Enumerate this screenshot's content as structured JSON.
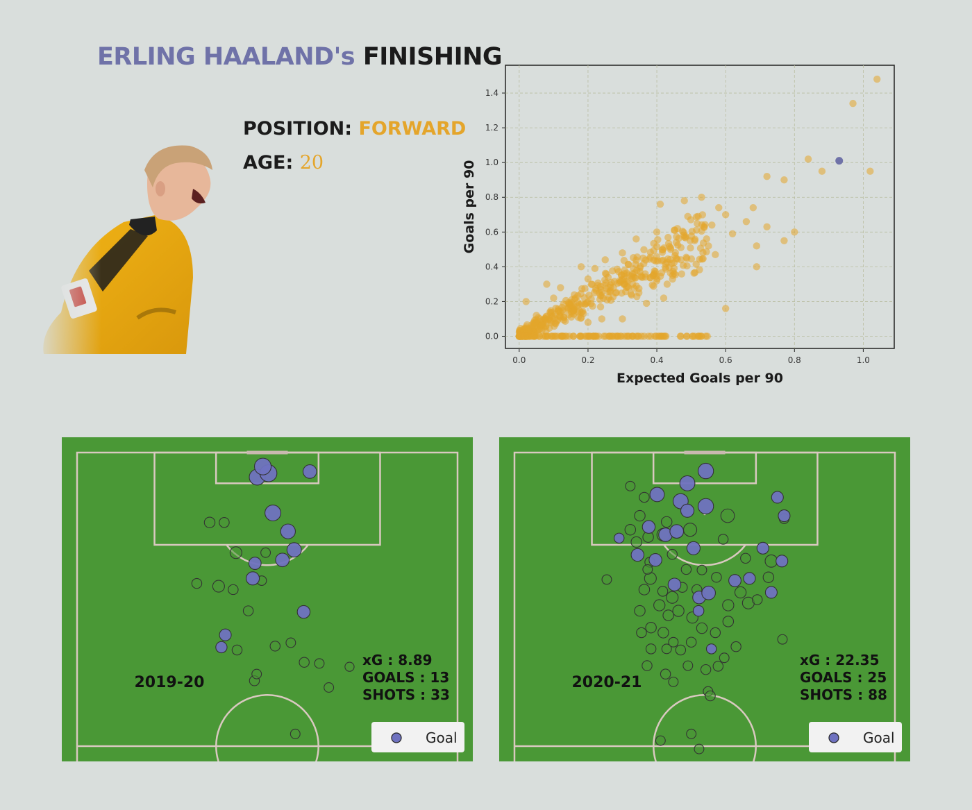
{
  "title": {
    "name": "ERLING HAALAND's",
    "rest": "FINISHING"
  },
  "player": {
    "position_label": "POSITION:",
    "position_value": "FORWARD",
    "age_label": "AGE:",
    "age_value": "20"
  },
  "colors": {
    "accent_gold": "#e4a52b",
    "accent_purple": "#6f72a8",
    "pitch_green": "#4a9836",
    "background": "#d9dedc"
  },
  "chart_data": [
    {
      "type": "scatter",
      "xlabel": "Expected Goals per 90",
      "ylabel": "Goals per 90",
      "xlim": [
        -0.04,
        1.09
      ],
      "ylim": [
        -0.07,
        1.56
      ],
      "xticks": [
        "0.0",
        "0.2",
        "0.4",
        "0.6",
        "0.8",
        "1.0"
      ],
      "yticks": [
        "0.0",
        "0.2",
        "0.4",
        "0.6",
        "0.8",
        "1.0",
        "1.2",
        "1.4"
      ],
      "grid": true,
      "series": [
        {
          "role": "others",
          "color": "#e4a52b",
          "points": [
            [
              1.04,
              1.48
            ],
            [
              0.97,
              1.34
            ],
            [
              1.02,
              0.95
            ],
            [
              0.88,
              0.95
            ],
            [
              0.84,
              1.02
            ],
            [
              0.72,
              0.92
            ],
            [
              0.77,
              0.9
            ],
            [
              0.8,
              0.6
            ],
            [
              0.77,
              0.55
            ],
            [
              0.69,
              0.52
            ],
            [
              0.72,
              0.63
            ],
            [
              0.66,
              0.66
            ],
            [
              0.68,
              0.74
            ],
            [
              0.69,
              0.4
            ],
            [
              0.6,
              0.16
            ],
            [
              0.6,
              0.7
            ],
            [
              0.58,
              0.74
            ],
            [
              0.56,
              0.64
            ],
            [
              0.53,
              0.8
            ],
            [
              0.48,
              0.78
            ],
            [
              0.41,
              0.76
            ],
            [
              0.46,
              0.62
            ],
            [
              0.51,
              0.55
            ],
            [
              0.44,
              0.5
            ],
            [
              0.39,
              0.35
            ],
            [
              0.36,
              0.45
            ],
            [
              0.33,
              0.3
            ],
            [
              0.25,
              0.44
            ],
            [
              0.22,
              0.39
            ],
            [
              0.2,
              0.33
            ],
            [
              0.18,
              0.4
            ],
            [
              0.12,
              0.28
            ],
            [
              0.08,
              0.3
            ],
            [
              0.48,
              0.57
            ],
            [
              0.52,
              0.69
            ],
            [
              0.47,
              0.44
            ],
            [
              0.43,
              0.3
            ],
            [
              0.4,
              0.6
            ],
            [
              0.55,
              0.52
            ],
            [
              0.62,
              0.59
            ],
            [
              0.28,
              0.25
            ],
            [
              0.3,
              0.48
            ],
            [
              0.24,
              0.1
            ],
            [
              0.42,
              0.22
            ],
            [
              0.37,
              0.19
            ],
            [
              0.3,
              0.1
            ],
            [
              0.2,
              0.08
            ],
            [
              0.02,
              0.2
            ],
            [
              0.05,
              0.12
            ],
            [
              0.34,
              0.56
            ],
            [
              0.49,
              0.69
            ],
            [
              0.57,
              0.47
            ],
            [
              0.45,
              0.36
            ],
            [
              0.15,
              0.18
            ],
            [
              0.1,
              0.22
            ]
          ]
        },
        {
          "role": "highlight",
          "name": "",
          "color": "#6f72a8",
          "points": [
            [
              0.93,
              1.01
            ]
          ]
        }
      ]
    },
    {
      "type": "scatter",
      "chart": "shot-map",
      "season": "2019-20",
      "stats": [
        "xG : 8.89",
        "GOALS : 13",
        "SHOTS : 33"
      ],
      "legend": {
        "label": "Goal",
        "placement": "bottom-right"
      },
      "x_unit": "metres from pitch centre",
      "y_unit": "metres from goal line",
      "shots": [
        {
          "x": -1.8,
          "y": 4.4,
          "xg": 0.33,
          "goal": true
        },
        {
          "x": 0.2,
          "y": 3.7,
          "xg": 0.4,
          "goal": true
        },
        {
          "x": -0.8,
          "y": 2.5,
          "xg": 0.38,
          "goal": true
        },
        {
          "x": 7.6,
          "y": 3.4,
          "xg": 0.2,
          "goal": true
        },
        {
          "x": 1.0,
          "y": 10.8,
          "xg": 0.33,
          "goal": true
        },
        {
          "x": 3.7,
          "y": 14.1,
          "xg": 0.26,
          "goal": true
        },
        {
          "x": 4.8,
          "y": 17.4,
          "xg": 0.24,
          "goal": true
        },
        {
          "x": 2.7,
          "y": 19.2,
          "xg": 0.2,
          "goal": true
        },
        {
          "x": -2.6,
          "y": 22.5,
          "xg": 0.18,
          "goal": true
        },
        {
          "x": -2.2,
          "y": 19.8,
          "xg": 0.14,
          "goal": true
        },
        {
          "x": 6.5,
          "y": 28.5,
          "xg": 0.16,
          "goal": true
        },
        {
          "x": -7.5,
          "y": 32.6,
          "xg": 0.12,
          "goal": true
        },
        {
          "x": -8.2,
          "y": 34.8,
          "xg": 0.1,
          "goal": true
        },
        {
          "x": -5.6,
          "y": 17.9,
          "xg": 0.12,
          "goal": false
        },
        {
          "x": -8.7,
          "y": 23.9,
          "xg": 0.12,
          "goal": false
        },
        {
          "x": -10.3,
          "y": 12.5,
          "xg": 0.08,
          "goal": false
        },
        {
          "x": -7.7,
          "y": 12.5,
          "xg": 0.06,
          "goal": false
        },
        {
          "x": -12.6,
          "y": 23.4,
          "xg": 0.06,
          "goal": false
        },
        {
          "x": -5.4,
          "y": 35.3,
          "xg": 0.06,
          "goal": false
        },
        {
          "x": -6.1,
          "y": 24.5,
          "xg": 0.06,
          "goal": false
        },
        {
          "x": -3.4,
          "y": 28.3,
          "xg": 0.06,
          "goal": false
        },
        {
          "x": -2.3,
          "y": 40.8,
          "xg": 0.06,
          "goal": false
        },
        {
          "x": 1.4,
          "y": 34.6,
          "xg": 0.06,
          "goal": false
        },
        {
          "x": 6.6,
          "y": 37.5,
          "xg": 0.06,
          "goal": false
        },
        {
          "x": 14.7,
          "y": 38.3,
          "xg": 0.04,
          "goal": false
        },
        {
          "x": 11.0,
          "y": 42.0,
          "xg": 0.05,
          "goal": false
        },
        {
          "x": 5.0,
          "y": 50.3,
          "xg": 0.05,
          "goal": false
        },
        {
          "x": -7.0,
          "y": 61.7,
          "xg": 0.05,
          "goal": false
        },
        {
          "x": 4.2,
          "y": 34.0,
          "xg": 0.05,
          "goal": false
        },
        {
          "x": -1.9,
          "y": 39.6,
          "xg": 0.05,
          "goal": false
        },
        {
          "x": 9.3,
          "y": 37.7,
          "xg": 0.05,
          "goal": false
        },
        {
          "x": -0.3,
          "y": 17.9,
          "xg": 0.05,
          "goal": false
        },
        {
          "x": -1.0,
          "y": 22.9,
          "xg": 0.05,
          "goal": false
        }
      ]
    },
    {
      "type": "scatter",
      "chart": "shot-map",
      "season": "2020-21",
      "stats": [
        "xG : 22.35",
        "GOALS : 25",
        "SHOTS : 88"
      ],
      "legend": {
        "label": "Goal",
        "placement": "bottom-right"
      },
      "x_unit": "metres from pitch centre",
      "y_unit": "metres from goal line",
      "shots": [
        {
          "x": 0.2,
          "y": 3.3,
          "xg": 0.3,
          "goal": true
        },
        {
          "x": 0.2,
          "y": 9.6,
          "xg": 0.3,
          "goal": true
        },
        {
          "x": -4.3,
          "y": 8.7,
          "xg": 0.28,
          "goal": true
        },
        {
          "x": -3.1,
          "y": 5.5,
          "xg": 0.28,
          "goal": true
        },
        {
          "x": -8.5,
          "y": 7.5,
          "xg": 0.24,
          "goal": true
        },
        {
          "x": -7.0,
          "y": 14.7,
          "xg": 0.2,
          "goal": true
        },
        {
          "x": -5.0,
          "y": 14.1,
          "xg": 0.2,
          "goal": true
        },
        {
          "x": -2.0,
          "y": 17.1,
          "xg": 0.18,
          "goal": true
        },
        {
          "x": -3.1,
          "y": 10.4,
          "xg": 0.18,
          "goal": true
        },
        {
          "x": -12.0,
          "y": 18.3,
          "xg": 0.16,
          "goal": true
        },
        {
          "x": -10.0,
          "y": 13.3,
          "xg": 0.16,
          "goal": true
        },
        {
          "x": -8.8,
          "y": 19.2,
          "xg": 0.16,
          "goal": true
        },
        {
          "x": -5.4,
          "y": 23.6,
          "xg": 0.16,
          "goal": true
        },
        {
          "x": -1.0,
          "y": 25.9,
          "xg": 0.16,
          "goal": true
        },
        {
          "x": 0.7,
          "y": 25.1,
          "xg": 0.2,
          "goal": true
        },
        {
          "x": 5.4,
          "y": 22.9,
          "xg": 0.14,
          "goal": true
        },
        {
          "x": 8.0,
          "y": 22.5,
          "xg": 0.12,
          "goal": true
        },
        {
          "x": 13.0,
          "y": 8.0,
          "xg": 0.12,
          "goal": true
        },
        {
          "x": 14.2,
          "y": 11.3,
          "xg": 0.12,
          "goal": true
        },
        {
          "x": 13.8,
          "y": 19.4,
          "xg": 0.12,
          "goal": true
        },
        {
          "x": 10.4,
          "y": 17.1,
          "xg": 0.12,
          "goal": true
        },
        {
          "x": -1.1,
          "y": 28.3,
          "xg": 0.08,
          "goal": true
        },
        {
          "x": 1.2,
          "y": 35.1,
          "xg": 0.06,
          "goal": true
        },
        {
          "x": -15.3,
          "y": 15.3,
          "xg": 0.06,
          "goal": true
        },
        {
          "x": 11.9,
          "y": 25.0,
          "xg": 0.12,
          "goal": true
        },
        {
          "x": 4.1,
          "y": 11.3,
          "xg": 0.2,
          "goal": false
        },
        {
          "x": -2.6,
          "y": 13.8,
          "xg": 0.18,
          "goal": false
        },
        {
          "x": -7.4,
          "y": 14.7,
          "xg": 0.16,
          "goal": false
        },
        {
          "x": 11.9,
          "y": 19.4,
          "xg": 0.14,
          "goal": false
        },
        {
          "x": -9.7,
          "y": 22.5,
          "xg": 0.12,
          "goal": false
        },
        {
          "x": -5.8,
          "y": 25.9,
          "xg": 0.12,
          "goal": false
        },
        {
          "x": -8.1,
          "y": 27.3,
          "xg": 0.1,
          "goal": false
        },
        {
          "x": -4.7,
          "y": 28.3,
          "xg": 0.1,
          "goal": false
        },
        {
          "x": -2.2,
          "y": 29.5,
          "xg": 0.1,
          "goal": false
        },
        {
          "x": 4.2,
          "y": 27.3,
          "xg": 0.1,
          "goal": false
        },
        {
          "x": 6.4,
          "y": 25.0,
          "xg": 0.1,
          "goal": false
        },
        {
          "x": 7.8,
          "y": 26.9,
          "xg": 0.12,
          "goal": false
        },
        {
          "x": -11.6,
          "y": 11.3,
          "xg": 0.08,
          "goal": false
        },
        {
          "x": -13.3,
          "y": 13.8,
          "xg": 0.08,
          "goal": false
        },
        {
          "x": -12.2,
          "y": 16.0,
          "xg": 0.08,
          "goal": false
        },
        {
          "x": -10.8,
          "y": 24.5,
          "xg": 0.08,
          "goal": false
        },
        {
          "x": -11.6,
          "y": 28.3,
          "xg": 0.08,
          "goal": false
        },
        {
          "x": -9.6,
          "y": 31.3,
          "xg": 0.08,
          "goal": false
        },
        {
          "x": -7.4,
          "y": 32.2,
          "xg": 0.08,
          "goal": false
        },
        {
          "x": -6.5,
          "y": 29.1,
          "xg": 0.08,
          "goal": false
        },
        {
          "x": -4.3,
          "y": 35.3,
          "xg": 0.06,
          "goal": false
        },
        {
          "x": -2.4,
          "y": 33.9,
          "xg": 0.06,
          "goal": false
        },
        {
          "x": -0.5,
          "y": 31.4,
          "xg": 0.08,
          "goal": false
        },
        {
          "x": 1.9,
          "y": 32.2,
          "xg": 0.06,
          "goal": false
        },
        {
          "x": 4.2,
          "y": 30.2,
          "xg": 0.08,
          "goal": false
        },
        {
          "x": 5.6,
          "y": 34.7,
          "xg": 0.06,
          "goal": false
        },
        {
          "x": 9.4,
          "y": 26.3,
          "xg": 0.06,
          "goal": false
        },
        {
          "x": 11.4,
          "y": 22.3,
          "xg": 0.08,
          "goal": false
        },
        {
          "x": 13.9,
          "y": 33.4,
          "xg": 0.05,
          "goal": false
        },
        {
          "x": 14.2,
          "y": 11.8,
          "xg": 0.06,
          "goal": false
        },
        {
          "x": -17.5,
          "y": 22.7,
          "xg": 0.05,
          "goal": false
        },
        {
          "x": -11.3,
          "y": 32.2,
          "xg": 0.06,
          "goal": false
        },
        {
          "x": -9.6,
          "y": 35.1,
          "xg": 0.06,
          "goal": false
        },
        {
          "x": -10.3,
          "y": 38.1,
          "xg": 0.06,
          "goal": false
        },
        {
          "x": -7.0,
          "y": 39.6,
          "xg": 0.06,
          "goal": false
        },
        {
          "x": -5.6,
          "y": 41.0,
          "xg": 0.05,
          "goal": false
        },
        {
          "x": 0.2,
          "y": 38.8,
          "xg": 0.06,
          "goal": false
        },
        {
          "x": 0.6,
          "y": 42.7,
          "xg": 0.05,
          "goal": false
        },
        {
          "x": 1.0,
          "y": 43.5,
          "xg": 0.06,
          "goal": false
        },
        {
          "x": 2.4,
          "y": 38.2,
          "xg": 0.06,
          "goal": false
        },
        {
          "x": 3.5,
          "y": 36.7,
          "xg": 0.05,
          "goal": false
        },
        {
          "x": -7.9,
          "y": 51.5,
          "xg": 0.05,
          "goal": false
        },
        {
          "x": -8.7,
          "y": 56.3,
          "xg": 0.05,
          "goal": false
        },
        {
          "x": -2.4,
          "y": 50.3,
          "xg": 0.05,
          "goal": false
        },
        {
          "x": -1.0,
          "y": 53.0,
          "xg": 0.05,
          "goal": false
        },
        {
          "x": -10.1,
          "y": 15.1,
          "xg": 0.08,
          "goal": false
        },
        {
          "x": -6.8,
          "y": 12.4,
          "xg": 0.08,
          "goal": false
        },
        {
          "x": -13.3,
          "y": 6.0,
          "xg": 0.05,
          "goal": false
        },
        {
          "x": -10.8,
          "y": 8.0,
          "xg": 0.06,
          "goal": false
        },
        {
          "x": -9.8,
          "y": 19.6,
          "xg": 0.06,
          "goal": false
        },
        {
          "x": 3.3,
          "y": 15.5,
          "xg": 0.06,
          "goal": false
        },
        {
          "x": -5.8,
          "y": 18.2,
          "xg": 0.06,
          "goal": false
        },
        {
          "x": 7.3,
          "y": 18.9,
          "xg": 0.06,
          "goal": false
        },
        {
          "x": -3.3,
          "y": 20.9,
          "xg": 0.06,
          "goal": false
        },
        {
          "x": 2.1,
          "y": 22.3,
          "xg": 0.06,
          "goal": false
        },
        {
          "x": -1.4,
          "y": 24.5,
          "xg": 0.06,
          "goal": false
        },
        {
          "x": -7.5,
          "y": 24.8,
          "xg": 0.06,
          "goal": false
        },
        {
          "x": -4.0,
          "y": 24.1,
          "xg": 0.06,
          "goal": false
        },
        {
          "x": -3.0,
          "y": 38.1,
          "xg": 0.05,
          "goal": false
        },
        {
          "x": -6.8,
          "y": 35.1,
          "xg": 0.05,
          "goal": false
        },
        {
          "x": -10.2,
          "y": 20.9,
          "xg": 0.05,
          "goal": false
        },
        {
          "x": -5.6,
          "y": 33.9,
          "xg": 0.05,
          "goal": false
        },
        {
          "x": -0.5,
          "y": 21.0,
          "xg": 0.05,
          "goal": false
        }
      ]
    }
  ]
}
